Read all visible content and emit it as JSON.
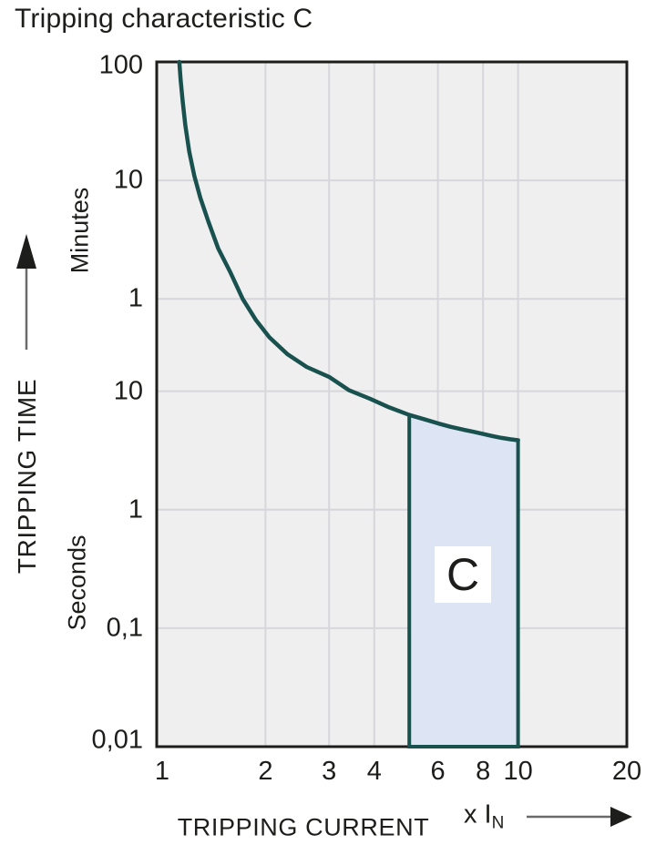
{
  "title": "Tripping characteristic C",
  "chart_data": {
    "type": "line",
    "title": "Tripping characteristic C",
    "grid": true,
    "x_axis": {
      "label": "TRIPPING CURRENT",
      "unit_prefix": "x I",
      "unit_sub": "N",
      "scale": "log",
      "domain": [
        1,
        20
      ],
      "tick_labels": [
        "1",
        "2",
        "3",
        "4",
        "6",
        "8",
        "10",
        "20"
      ],
      "tick_values": [
        1,
        2,
        3,
        4,
        6,
        8,
        10,
        20
      ],
      "gridline_values": [
        2,
        3,
        4,
        6,
        8,
        10
      ]
    },
    "y_axis": {
      "label": "TRIPPING TIME",
      "scale": "log",
      "domain_seconds": [
        0.01,
        6000
      ],
      "unit_sections": [
        {
          "label": "Minutes"
        },
        {
          "label": "Seconds"
        }
      ],
      "ticks": [
        {
          "label": "100",
          "seconds": 6000
        },
        {
          "label": "10",
          "seconds": 600
        },
        {
          "label": "1",
          "seconds": 60
        },
        {
          "label": "10",
          "seconds": 10
        },
        {
          "label": "1",
          "seconds": 1
        },
        {
          "label": "0,1",
          "seconds": 0.1
        },
        {
          "label": "0,01",
          "seconds": 0.01
        }
      ],
      "gridline_seconds": [
        600,
        60,
        10,
        1,
        0.1
      ]
    },
    "series": [
      {
        "name": "tripping-curve",
        "points": [
          [
            1.155,
            6000
          ],
          [
            1.165,
            4200
          ],
          [
            1.18,
            2800
          ],
          [
            1.2,
            1750
          ],
          [
            1.23,
            1050
          ],
          [
            1.27,
            660
          ],
          [
            1.32,
            430
          ],
          [
            1.39,
            270
          ],
          [
            1.48,
            160
          ],
          [
            1.6,
            100
          ],
          [
            1.73,
            60
          ],
          [
            1.88,
            40
          ],
          [
            2.05,
            28.5
          ],
          [
            2.3,
            20.5
          ],
          [
            2.6,
            16
          ],
          [
            3.0,
            13.2
          ],
          [
            3.4,
            10.2
          ],
          [
            3.9,
            8.6
          ],
          [
            4.4,
            7.3
          ],
          [
            5.0,
            6.3
          ],
          [
            5.5,
            5.8
          ],
          [
            6.0,
            5.35
          ],
          [
            6.5,
            5.0
          ],
          [
            7.0,
            4.75
          ],
          [
            7.5,
            4.55
          ],
          [
            8.0,
            4.35
          ],
          [
            8.5,
            4.18
          ],
          [
            9.0,
            4.03
          ],
          [
            9.5,
            3.93
          ],
          [
            10.0,
            3.85
          ]
        ]
      }
    ],
    "region": {
      "label": "C",
      "x_range": [
        5,
        10
      ],
      "bottom_seconds": 0.01
    },
    "colors": {
      "curve": "#19514f",
      "region_fill": "#dde4f3",
      "plot_background": "#efeff0",
      "gridline": "#d6d6db",
      "border": "#1d1d1b",
      "text": "#1d1d1b",
      "arrow_line": "#6a6a6a"
    }
  }
}
